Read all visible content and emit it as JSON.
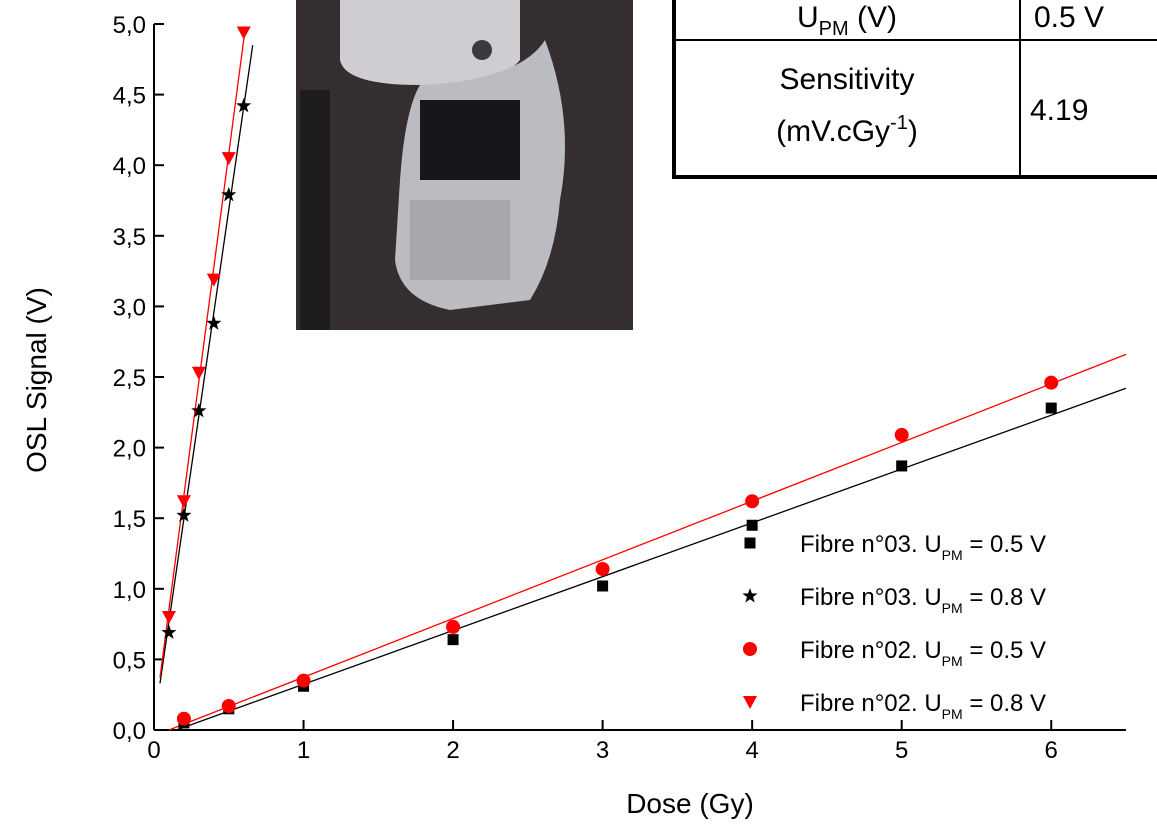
{
  "chart_data": {
    "type": "scatter",
    "x_label": "Dose (Gy)",
    "y_label": "OSL Signal (V)",
    "xlim": [
      0,
      6.5
    ],
    "ylim": [
      0,
      5.0
    ],
    "xticks": [
      0,
      1,
      2,
      3,
      4,
      5,
      6
    ],
    "yticks": [
      {
        "value": 0,
        "label": "0,0"
      },
      {
        "value": 0.5,
        "label": "0,5"
      },
      {
        "value": 1.0,
        "label": "1,0"
      },
      {
        "value": 1.5,
        "label": "1,5"
      },
      {
        "value": 2.0,
        "label": "2,0"
      },
      {
        "value": 2.5,
        "label": "2,5"
      },
      {
        "value": 3.0,
        "label": "3,0"
      },
      {
        "value": 3.5,
        "label": "3,5"
      },
      {
        "value": 4.0,
        "label": "4,0"
      },
      {
        "value": 4.5,
        "label": "4,5"
      },
      {
        "value": 5.0,
        "label": "5,0"
      }
    ],
    "series": [
      {
        "name": [
          "Fibre n°03. U",
          "PM",
          " = 0.5 V"
        ],
        "color": "#000000",
        "marker": "square",
        "x": [
          0.2,
          0.5,
          1,
          2,
          3,
          4,
          5,
          6
        ],
        "values": [
          0.05,
          0.15,
          0.31,
          0.64,
          1.02,
          1.45,
          1.87,
          2.28
        ],
        "fit": {
          "x": [
            0.15,
            6.5
          ],
          "values": [
            0,
            2.42
          ]
        }
      },
      {
        "name": [
          "Fibre n°03. U",
          "PM",
          " = 0.8 V"
        ],
        "color": "#000000",
        "marker": "star",
        "x": [
          0.1,
          0.2,
          0.3,
          0.4,
          0.5,
          0.6
        ],
        "values": [
          0.69,
          1.52,
          2.26,
          2.88,
          3.79,
          4.42
        ],
        "fit": {
          "x": [
            0.04,
            0.66
          ],
          "values": [
            0.33,
            4.85
          ]
        }
      },
      {
        "name": [
          "Fibre n°02. U",
          "PM",
          " = 0.5 V"
        ],
        "color": "#ff0000",
        "marker": "circle",
        "x": [
          0.2,
          0.5,
          1,
          2,
          3,
          4,
          5,
          6
        ],
        "values": [
          0.08,
          0.17,
          0.35,
          0.73,
          1.14,
          1.62,
          2.09,
          2.46
        ],
        "fit": {
          "x": [
            0.1,
            6.5
          ],
          "values": [
            0,
            2.66
          ]
        }
      },
      {
        "name": [
          "Fibre n°02. U",
          "PM",
          " = 0.8 V"
        ],
        "color": "#ff0000",
        "marker": "triangle-down",
        "x": [
          0.1,
          0.2,
          0.3,
          0.4,
          0.5,
          0.6
        ],
        "values": [
          0.8,
          1.62,
          2.53,
          3.19,
          4.05,
          4.94
        ],
        "fit": {
          "x": [
            0.04,
            0.61
          ],
          "values": [
            0.37,
            4.97
          ]
        }
      }
    ]
  },
  "inset_table": {
    "rows": [
      [
        [
          "U",
          "PM",
          " (V)"
        ],
        "0.5 V"
      ],
      [
        [
          "Sensitivity",
          "(mV.cGy",
          "-1",
          ")"
        ],
        "4.19"
      ]
    ]
  }
}
